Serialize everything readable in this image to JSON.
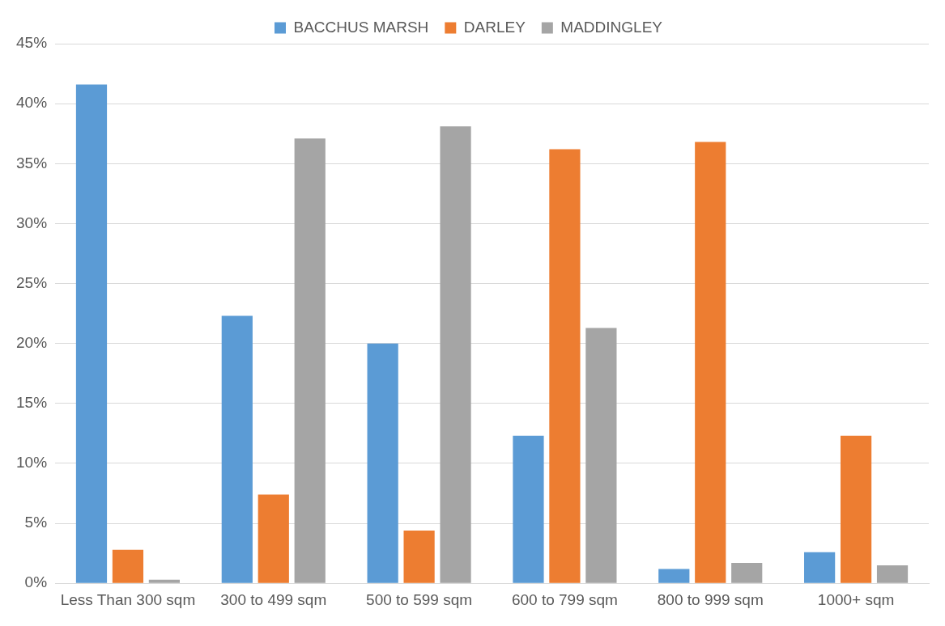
{
  "chart_data": {
    "type": "bar",
    "categories": [
      "Less Than 300 sqm",
      "300 to 499 sqm",
      "500 to 599 sqm",
      "600 to 799 sqm",
      "800 to 999 sqm",
      "1000+ sqm"
    ],
    "series": [
      {
        "name": "BACCHUS MARSH",
        "color": "#5b9bd5",
        "values": [
          41.6,
          22.3,
          20.0,
          12.3,
          1.2,
          2.6
        ]
      },
      {
        "name": "DARLEY",
        "color": "#ed7d31",
        "values": [
          2.8,
          7.4,
          4.4,
          36.2,
          36.8,
          12.3
        ]
      },
      {
        "name": "MADDINGLEY",
        "color": "#a5a5a5",
        "values": [
          0.3,
          37.1,
          38.1,
          21.3,
          1.7,
          1.5
        ]
      }
    ],
    "ylim": [
      0,
      45
    ],
    "yticks": [
      {
        "value": 0,
        "label": "0%"
      },
      {
        "value": 5,
        "label": "5%"
      },
      {
        "value": 10,
        "label": "10%"
      },
      {
        "value": 15,
        "label": "15%"
      },
      {
        "value": 20,
        "label": "20%"
      },
      {
        "value": 25,
        "label": "25%"
      },
      {
        "value": 30,
        "label": "30%"
      },
      {
        "value": 35,
        "label": "35%"
      },
      {
        "value": 40,
        "label": "40%"
      },
      {
        "value": 45,
        "label": "45%"
      }
    ],
    "grid": "y",
    "legend": "top"
  }
}
